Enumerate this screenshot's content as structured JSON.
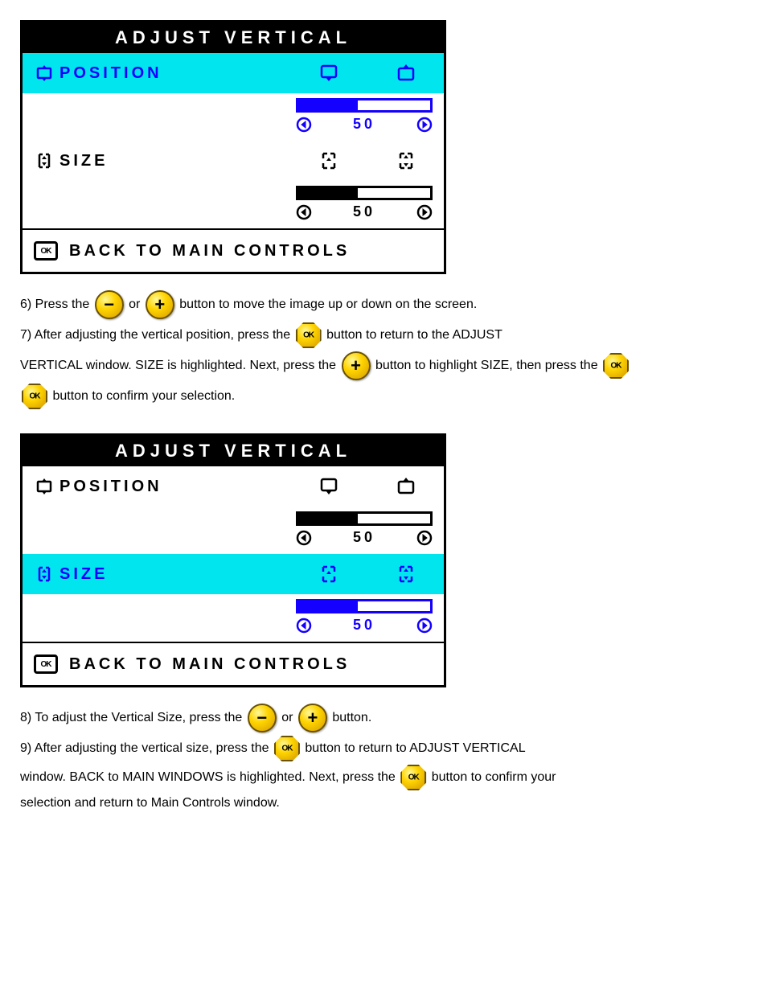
{
  "colors": {
    "highlight_bg": "#00e5ee",
    "active_fg": "#1400ff",
    "inactive_fg": "#000000",
    "panel_border": "#000000",
    "title_bg": "#000000",
    "title_fg": "#ffffff",
    "button_fill": "#ffd400",
    "button_border": "#6b5200"
  },
  "panel1": {
    "title": "ADJUST VERTICAL",
    "row_position": {
      "label": "POSITION",
      "highlighted": true,
      "progress_value": 50,
      "progress_label": "50",
      "progress_pct": 45
    },
    "row_size": {
      "label": "SIZE",
      "highlighted": false,
      "progress_value": 50,
      "progress_label": "50",
      "progress_pct": 45
    },
    "footer": "BACK TO MAIN CONTROLS"
  },
  "instr1": {
    "line1_a": "6) Press the ",
    "line1_b": " or ",
    "line1_c": " button to move the image up or down on the screen.",
    "line2_a": "7) After adjusting the vertical position, press the ",
    "line2_b": " button to return to the ADJUST",
    "line3_a": "VERTICAL window. SIZE is highlighted. Next, press the ",
    "line3_b": " button to highlight SIZE, then press the ",
    "line4_a": " button to confirm your selection."
  },
  "panel2": {
    "title": "ADJUST VERTICAL",
    "row_position": {
      "label": "POSITION",
      "highlighted": false,
      "progress_value": 50,
      "progress_label": "50",
      "progress_pct": 45
    },
    "row_size": {
      "label": "SIZE",
      "highlighted": true,
      "progress_value": 50,
      "progress_label": "50",
      "progress_pct": 45
    },
    "footer": "BACK TO MAIN CONTROLS"
  },
  "instr2": {
    "line1_a": "8) To adjust the Vertical Size, press the ",
    "line1_b": " or ",
    "line1_c": " button.",
    "line2_a": "9) After adjusting the vertical size, press the ",
    "line2_b": " button to return to ADJUST VERTICAL",
    "line3_a": "window. BACK to MAIN WINDOWS is highlighted. Next, press the ",
    "line3_b": " button to confirm your",
    "line4_a": "selection and return to Main Controls window."
  }
}
